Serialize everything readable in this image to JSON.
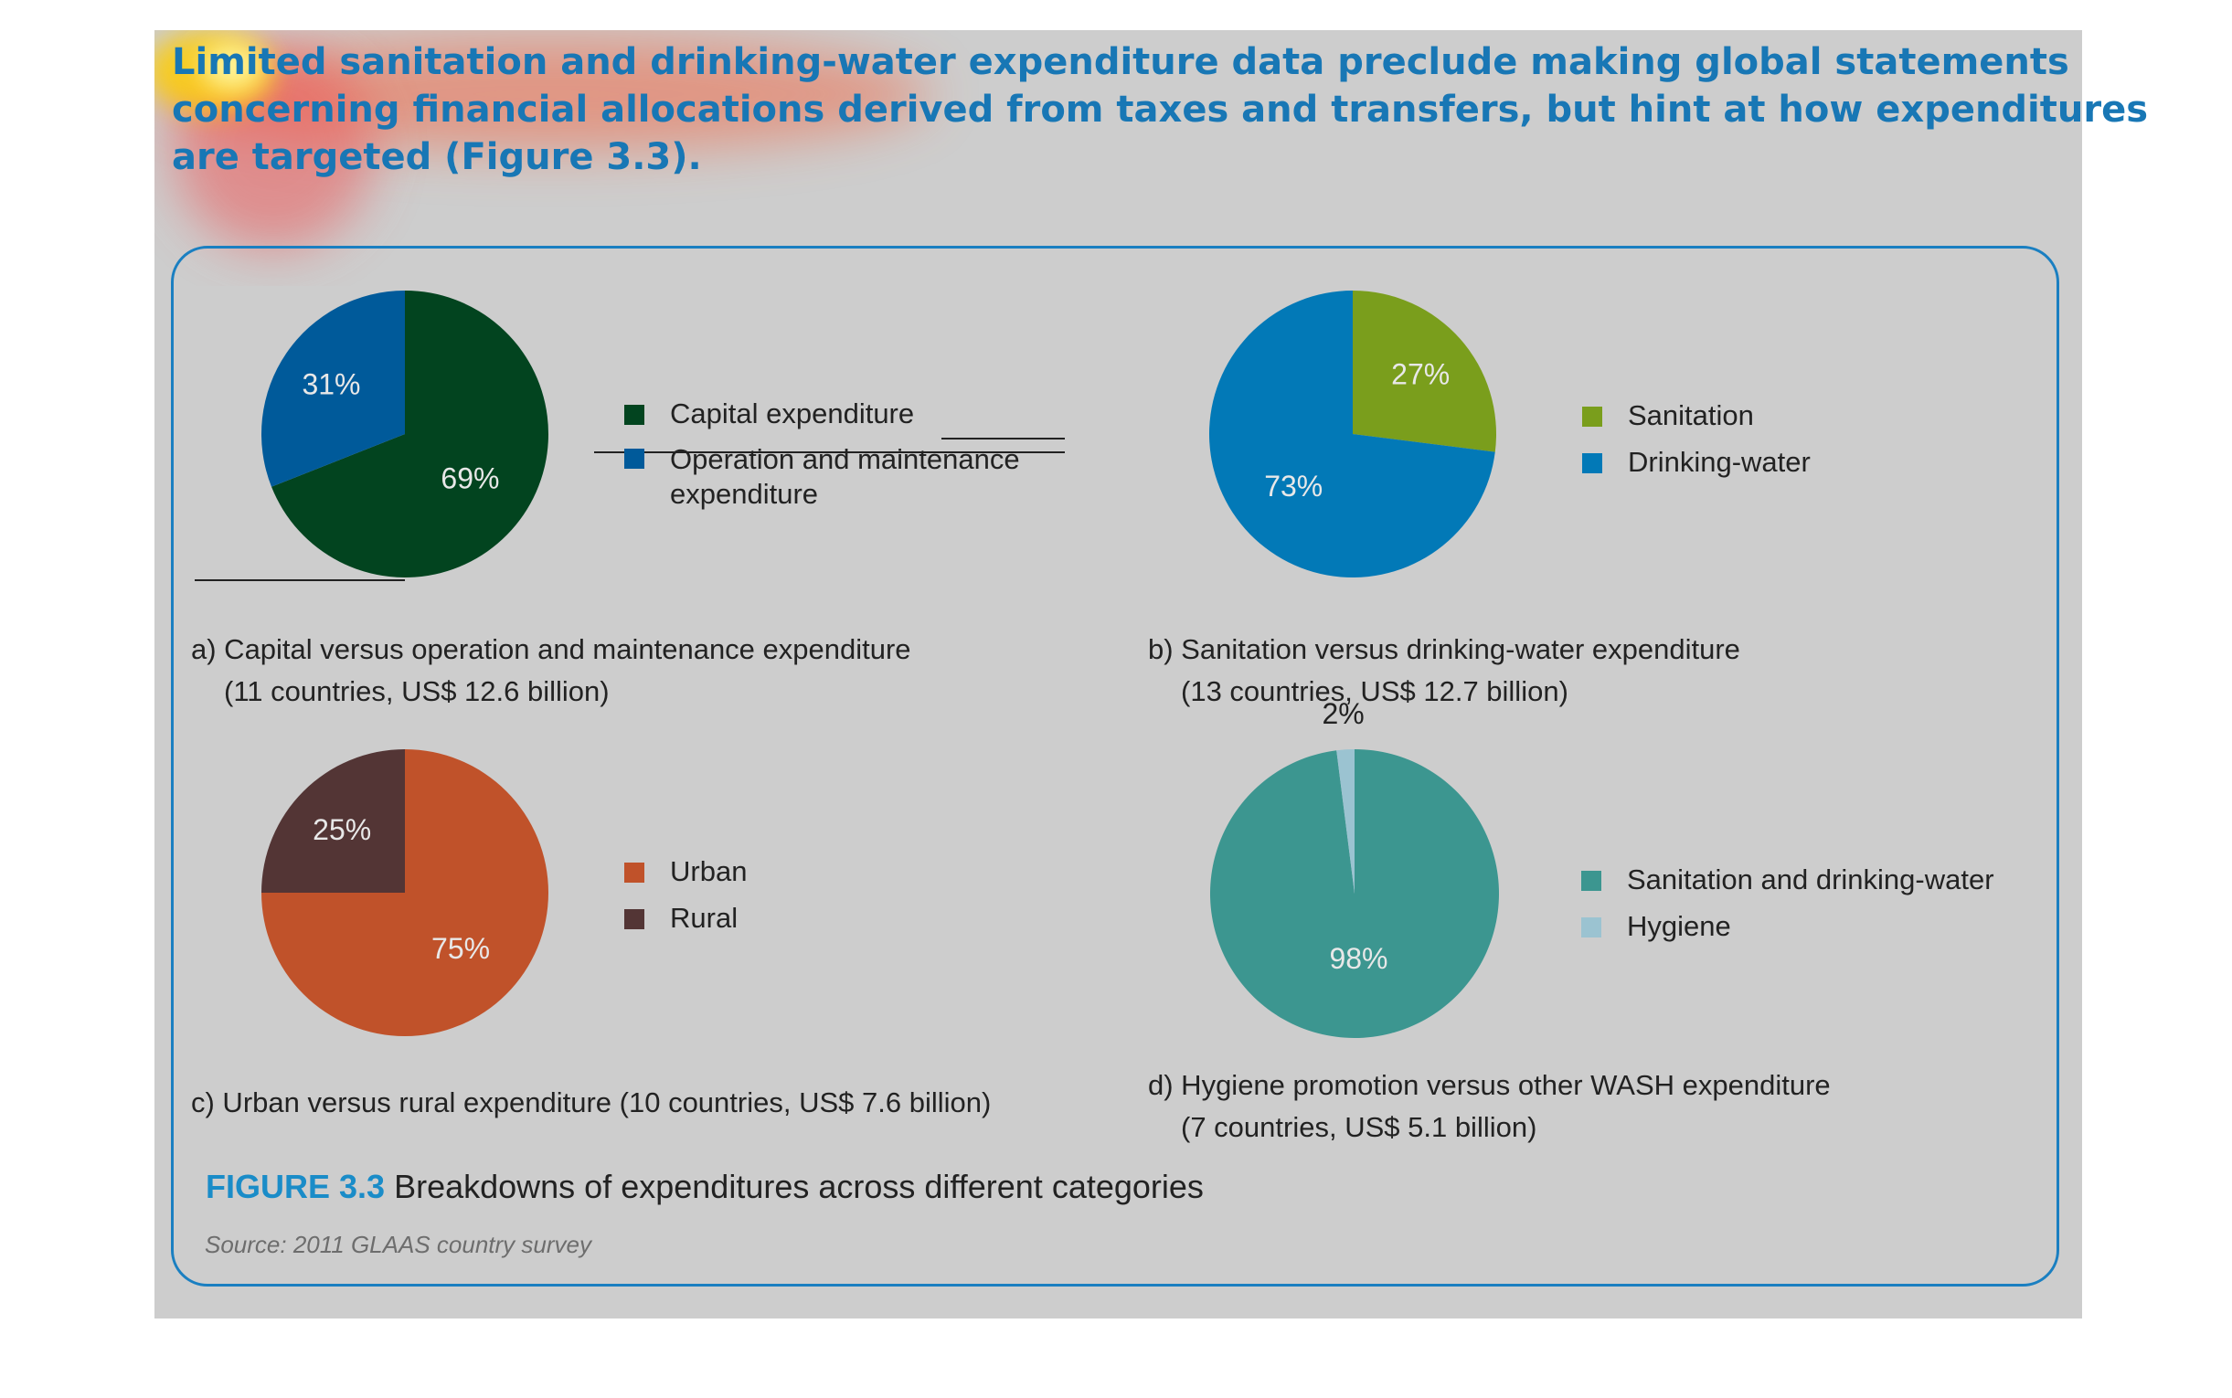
{
  "intro_lines": [
    "Limited sanitation and drinking-water expenditure data preclude making global statements",
    "concerning financial allocations derived from taxes and transfers, but hint at how expenditures",
    "are targeted (Figure 3.3)."
  ],
  "figure": {
    "label": "FIGURE 3.3",
    "title": "Breakdowns of expenditures across different categories",
    "source": "Source: 2011 GLAAS country survey"
  },
  "chart_data": [
    {
      "type": "pie",
      "id": "a",
      "categories": [
        "Capital expenditure",
        "Operation and maintenance expenditure"
      ],
      "values": [
        69,
        31
      ],
      "value_labels": [
        "69%",
        "31%"
      ],
      "colors": [
        "#02441f",
        "#005a9a"
      ],
      "caption": [
        "a) Capital versus operation and maintenance expenditure",
        "(11 countries, US$ 12.6 billion)"
      ],
      "legend_placement": "right"
    },
    {
      "type": "pie",
      "id": "b",
      "categories": [
        "Sanitation",
        "Drinking-water"
      ],
      "values": [
        27,
        73
      ],
      "value_labels": [
        "27%",
        "73%"
      ],
      "colors": [
        "#7a9e1c",
        "#0279b7"
      ],
      "caption": [
        "b) Sanitation versus drinking-water expenditure",
        "(13 countries, US$ 12.7 billion)"
      ],
      "legend_placement": "right"
    },
    {
      "type": "pie",
      "id": "c",
      "categories": [
        "Urban",
        "Rural"
      ],
      "values": [
        75,
        25
      ],
      "value_labels": [
        "75%",
        "25%"
      ],
      "colors": [
        "#c0522a",
        "#533535"
      ],
      "caption": [
        "c) Urban versus rural expenditure (10 countries, US$ 7.6 billion)"
      ],
      "legend_placement": "right"
    },
    {
      "type": "pie",
      "id": "d",
      "categories": [
        "Sanitation and drinking-water",
        "Hygiene"
      ],
      "values": [
        98,
        2
      ],
      "value_labels": [
        "98%",
        "2%"
      ],
      "colors": [
        "#3c9690",
        "#9bc3d1"
      ],
      "caption": [
        "d) Hygiene promotion versus other WASH expenditure",
        "(7 countries, US$ 5.1 billion)"
      ],
      "legend_placement": "right"
    }
  ]
}
